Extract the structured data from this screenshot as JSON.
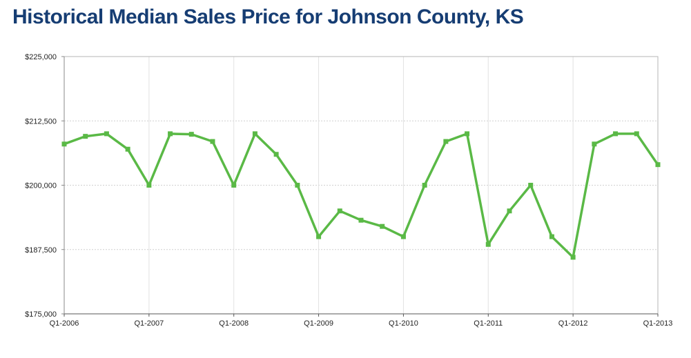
{
  "chart_data": {
    "type": "line",
    "title": "Historical Median Sales Price for Johnson County, KS",
    "xlabel": "",
    "ylabel": "",
    "ylim": [
      175000,
      225000
    ],
    "y_ticks": [
      "$175,000",
      "$187,500",
      "$200,000",
      "$212,500",
      "$225,000"
    ],
    "y_tick_values": [
      175000,
      187500,
      200000,
      212500,
      225000
    ],
    "x_tick_labels": [
      "Q1-2006",
      "Q1-2007",
      "Q1-2008",
      "Q1-2009",
      "Q1-2010",
      "Q1-2011",
      "Q1-2012",
      "Q1-2013"
    ],
    "grid": true,
    "line_color": "#5ab946",
    "series": [
      {
        "name": "",
        "x": [
          "Q1-2006",
          "Q2-2006",
          "Q3-2006",
          "Q4-2006",
          "Q1-2007",
          "Q2-2007",
          "Q3-2007",
          "Q4-2007",
          "Q1-2008",
          "Q2-2008",
          "Q3-2008",
          "Q4-2008",
          "Q1-2009",
          "Q2-2009",
          "Q3-2009",
          "Q4-2009",
          "Q1-2010",
          "Q2-2010",
          "Q3-2010",
          "Q4-2010",
          "Q1-2011",
          "Q2-2011",
          "Q3-2011",
          "Q4-2011",
          "Q1-2012",
          "Q2-2012",
          "Q3-2012",
          "Q4-2012",
          "Q1-2013"
        ],
        "values": [
          208000,
          209500,
          210000,
          207000,
          200000,
          210000,
          209900,
          208500,
          200000,
          210000,
          206000,
          200000,
          190000,
          195000,
          193200,
          192000,
          190000,
          200000,
          208500,
          210000,
          188500,
          195000,
          200000,
          190000,
          186000,
          208000,
          210000,
          210000,
          204000
        ]
      }
    ]
  }
}
